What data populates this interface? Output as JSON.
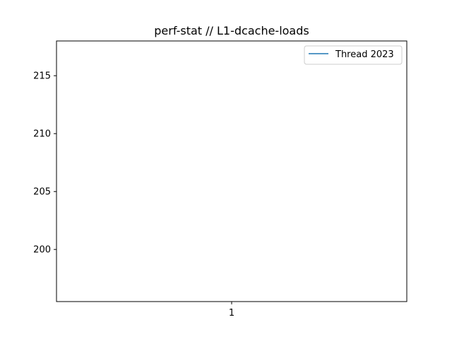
{
  "chart_data": {
    "type": "line",
    "title": "perf-stat // L1-dcache-loads",
    "xlabel": "",
    "ylabel": "",
    "x_ticks": [
      "1"
    ],
    "y_ticks": [
      200,
      205,
      210,
      215
    ],
    "xlim": [
      0.5,
      1.5
    ],
    "ylim": [
      195.5,
      218
    ],
    "grid": false,
    "legend_position": "top-right",
    "series": [
      {
        "name": "Thread 2023",
        "color": "#1f77b4",
        "x": [
          1
        ],
        "y": [
          null
        ]
      }
    ]
  }
}
